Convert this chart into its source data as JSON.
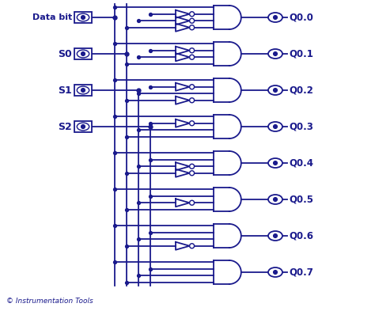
{
  "bg_color": "#ffffff",
  "line_color": "#1a1a8c",
  "line_width": 1.3,
  "copyright": "© Instrumentation Tools",
  "inputs": [
    "Data bit",
    "S0",
    "S1",
    "S2"
  ],
  "outputs": [
    "Q0.0",
    "Q0.1",
    "Q0.2",
    "Q0.3",
    "Q0.4",
    "Q0.5",
    "Q0.6",
    "Q0.7"
  ],
  "figsize": [
    4.74,
    3.93
  ],
  "dpi": 100
}
